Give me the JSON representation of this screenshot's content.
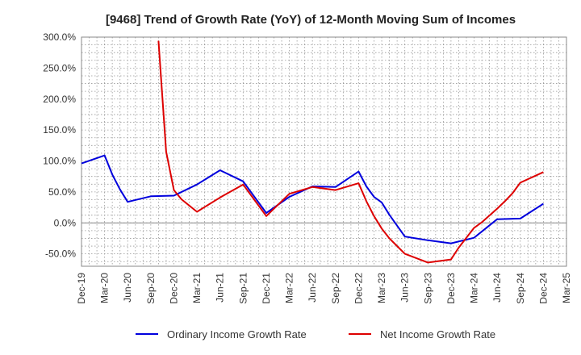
{
  "chart_data": {
    "type": "line",
    "title": "[9468]  Trend of Growth Rate (YoY) of 12-Month Moving Sum of Incomes",
    "xlabel": "",
    "ylabel": "",
    "ylim": [
      -70,
      300
    ],
    "y_ticks": [
      -50,
      0,
      50,
      100,
      150,
      200,
      250,
      300
    ],
    "y_tick_labels": [
      "-50.0%",
      "0.0%",
      "50.0%",
      "100.0%",
      "150.0%",
      "200.0%",
      "250.0%",
      "300.0%"
    ],
    "x_tick_labels": [
      "Dec-19",
      "Mar-20",
      "Jun-20",
      "Sep-20",
      "Dec-20",
      "Mar-21",
      "Jun-21",
      "Sep-21",
      "Dec-21",
      "Mar-22",
      "Jun-22",
      "Sep-22",
      "Dec-22",
      "Mar-23",
      "Jun-23",
      "Sep-23",
      "Dec-23",
      "Mar-24",
      "Jun-24",
      "Sep-24",
      "Dec-24",
      "Mar-25"
    ],
    "grid": true,
    "legend_position": "bottom",
    "series": [
      {
        "name": "Ordinary Income Growth Rate",
        "color": "#0000dd",
        "points": [
          [
            "2019-12",
            96
          ],
          [
            "2020-03",
            109
          ],
          [
            "2020-04",
            78
          ],
          [
            "2020-05",
            54
          ],
          [
            "2020-06",
            34
          ],
          [
            "2020-09",
            43
          ],
          [
            "2020-12",
            44
          ],
          [
            "2021-03",
            62
          ],
          [
            "2021-06",
            85
          ],
          [
            "2021-09",
            67
          ],
          [
            "2021-12",
            16
          ],
          [
            "2022-03",
            42
          ],
          [
            "2022-06",
            59
          ],
          [
            "2022-09",
            58
          ],
          [
            "2022-12",
            83
          ],
          [
            "2023-01",
            59
          ],
          [
            "2023-02",
            42
          ],
          [
            "2023-03",
            33
          ],
          [
            "2023-04",
            13
          ],
          [
            "2023-06",
            -22
          ],
          [
            "2023-09",
            -28
          ],
          [
            "2023-12",
            -33
          ],
          [
            "2024-03",
            -24
          ],
          [
            "2024-06",
            6
          ],
          [
            "2024-09",
            7
          ],
          [
            "2024-12",
            31
          ]
        ]
      },
      {
        "name": "Net Income Growth Rate",
        "color": "#dd0000",
        "points": [
          [
            "2020-10",
            294
          ],
          [
            "2020-11",
            115
          ],
          [
            "2020-12",
            53
          ],
          [
            "2021-01",
            38
          ],
          [
            "2021-03",
            18
          ],
          [
            "2021-06",
            41
          ],
          [
            "2021-09",
            62
          ],
          [
            "2021-12",
            11
          ],
          [
            "2022-03",
            47
          ],
          [
            "2022-06",
            58
          ],
          [
            "2022-09",
            53
          ],
          [
            "2022-12",
            64
          ],
          [
            "2023-01",
            35
          ],
          [
            "2023-02",
            11
          ],
          [
            "2023-03",
            -9
          ],
          [
            "2023-04",
            -25
          ],
          [
            "2023-06",
            -50
          ],
          [
            "2023-09",
            -64
          ],
          [
            "2023-12",
            -59
          ],
          [
            "2024-01",
            -40
          ],
          [
            "2024-03",
            -8
          ],
          [
            "2024-04",
            1
          ],
          [
            "2024-06",
            23
          ],
          [
            "2024-07",
            35
          ],
          [
            "2024-08",
            48
          ],
          [
            "2024-09",
            65
          ],
          [
            "2024-12",
            82
          ]
        ]
      }
    ]
  }
}
